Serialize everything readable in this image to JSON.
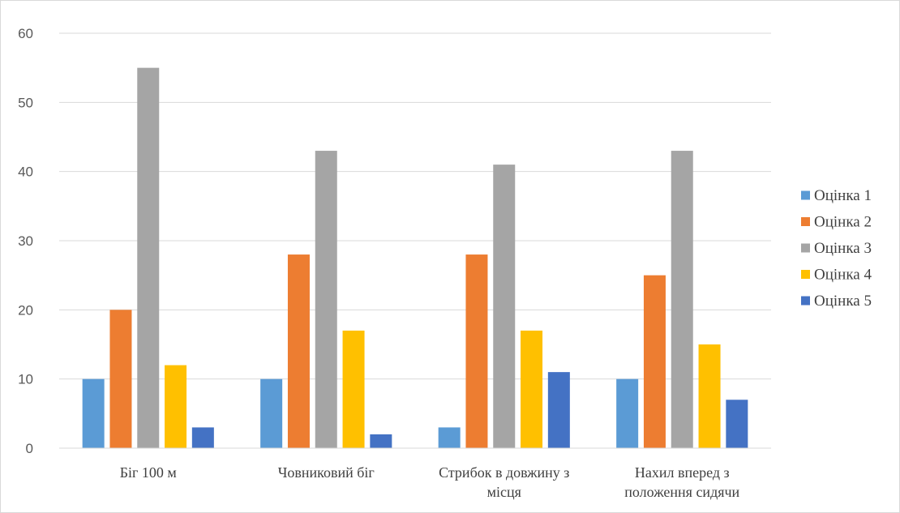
{
  "chart_data": {
    "type": "bar",
    "title": "",
    "xlabel": "",
    "ylabel": "",
    "ylim": [
      0,
      60
    ],
    "yticks": [
      0,
      10,
      20,
      30,
      40,
      50,
      60
    ],
    "grid": true,
    "legend_position": "right",
    "categories": [
      [
        "Біг 100 м"
      ],
      [
        "Човниковий біг"
      ],
      [
        "Стрибок в довжину з",
        "місця"
      ],
      [
        "Нахил вперед з",
        "положення сидячи"
      ]
    ],
    "series": [
      {
        "name": "Оцінка 1",
        "color": "#5b9bd5",
        "values": [
          10,
          10,
          3,
          10
        ]
      },
      {
        "name": "Оцінка 2",
        "color": "#ed7d31",
        "values": [
          20,
          28,
          28,
          25
        ]
      },
      {
        "name": "Оцінка 3",
        "color": "#a5a5a5",
        "values": [
          55,
          43,
          41,
          43
        ]
      },
      {
        "name": "Оцінка 4",
        "color": "#ffc000",
        "values": [
          12,
          17,
          17,
          15
        ]
      },
      {
        "name": "Оцінка 5",
        "color": "#4472c4",
        "values": [
          3,
          2,
          11,
          7
        ]
      }
    ]
  }
}
